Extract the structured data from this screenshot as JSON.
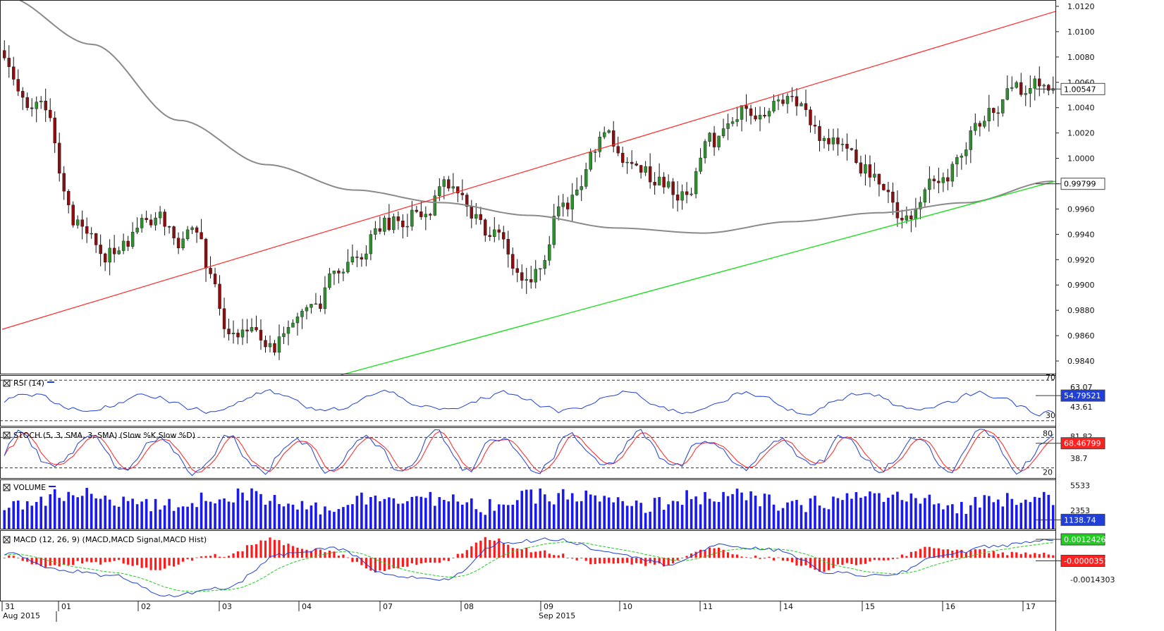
{
  "colors": {
    "bull": "#2f8f2f",
    "bear": "#8b0f0f",
    "wick": "#111111",
    "upper_trend": "#ff2a2a",
    "lower_trend": "#22dd22",
    "sma": "#8a8a8a",
    "rsi": "#1f3fd8",
    "stoch_k": "#1f3fd8",
    "stoch_d": "#ff2020",
    "volume": "#1a1aee",
    "macd": "#1f3fd8",
    "macd_signal": "#22cc22",
    "macd_hist": "#ff1a1a",
    "badge_price": "#ffffff",
    "badge_sma": "#ffffff",
    "badge_rsi": "#1f3fd8",
    "badge_stoch": "#ff2020",
    "badge_vol": "#1f3fd8",
    "badge_macd": "#22cc22",
    "badge_macd2": "#ff2020"
  },
  "chart_data": [
    {
      "type": "candlestick",
      "instrument_hint": "price",
      "ylim": [
        0.983,
        1.0125
      ],
      "yticks": [
        "1.0120",
        "1.0100",
        "1.0080",
        "1.0060",
        "1.0040",
        "1.0020",
        "1.0000",
        "0.9980",
        "0.9960",
        "0.9940",
        "0.9920",
        "0.9900",
        "0.9880",
        "0.9860",
        "0.9840"
      ],
      "price_labels": {
        "last": "1.00547",
        "sma": "0.99799"
      },
      "upper_trendline": {
        "from": [
          "31 Aug",
          0.9865
        ],
        "to": [
          "17 Sep",
          1.0116
        ]
      },
      "lower_trendline": {
        "from": [
          "04 Sep",
          0.9829
        ],
        "to": [
          "17 Sep",
          0.9982
        ]
      },
      "sma_anchor_values": [
        1.0128,
        1.009,
        1.003,
        0.9995,
        0.9975,
        0.9965,
        0.9955,
        0.9945,
        0.9941,
        0.995,
        0.9957,
        0.9965,
        0.9982
      ],
      "path_anchor_values": [
        1.008,
        1.004,
        0.9945,
        0.9925,
        0.995,
        0.9935,
        0.987,
        0.985,
        0.988,
        0.9905,
        0.9945,
        0.996,
        0.9975,
        0.9935,
        0.99,
        0.997,
        1.0015,
        0.9985,
        0.9975,
        1.001,
        1.004,
        1.0055,
        1.0005,
        0.9985,
        0.9955,
        0.999,
        1.0025,
        1.005,
        1.0055
      ]
    },
    {
      "type": "line",
      "title": "RSI (14)",
      "ylim": [
        25,
        75
      ],
      "levels": [
        "70",
        "30"
      ],
      "ticks": [
        "63.07",
        "43.61"
      ],
      "last_value": "54.79521"
    },
    {
      "type": "line",
      "title": "STOCH (5, 3, SMA, 3, SMA)",
      "series": [
        {
          "name": "Slow %K"
        },
        {
          "name": "Slow %D"
        }
      ],
      "ylim": [
        0,
        100
      ],
      "levels": [
        "80",
        "20"
      ],
      "ticks": [
        "81.82",
        "38.7"
      ],
      "last_value": "68.46799"
    },
    {
      "type": "bar",
      "title": "VOLUME",
      "ylim": [
        0,
        6300
      ],
      "ticks": [
        "5533",
        "2353"
      ],
      "last_value": "1138.74"
    },
    {
      "type": "line",
      "title": "MACD (12, 26, 9)",
      "series": [
        {
          "name": "MACD"
        },
        {
          "name": "MACD Signal"
        },
        {
          "name": "MACD Hist"
        }
      ],
      "ylim": [
        -0.0028,
        0.0018
      ],
      "ticks": [
        "0.0012426",
        "-0.0000351",
        "-0.0014303"
      ],
      "last_values": {
        "macd": "0.0012426",
        "hist": "-0.0000351"
      }
    }
  ],
  "x_axis": {
    "day_labels": [
      "31",
      "01",
      "02",
      "03",
      "04",
      "07",
      "08",
      "09",
      "10",
      "11",
      "14",
      "15",
      "16",
      "17"
    ],
    "month_labels": [
      "Aug 2015",
      "Sep 2015"
    ]
  }
}
